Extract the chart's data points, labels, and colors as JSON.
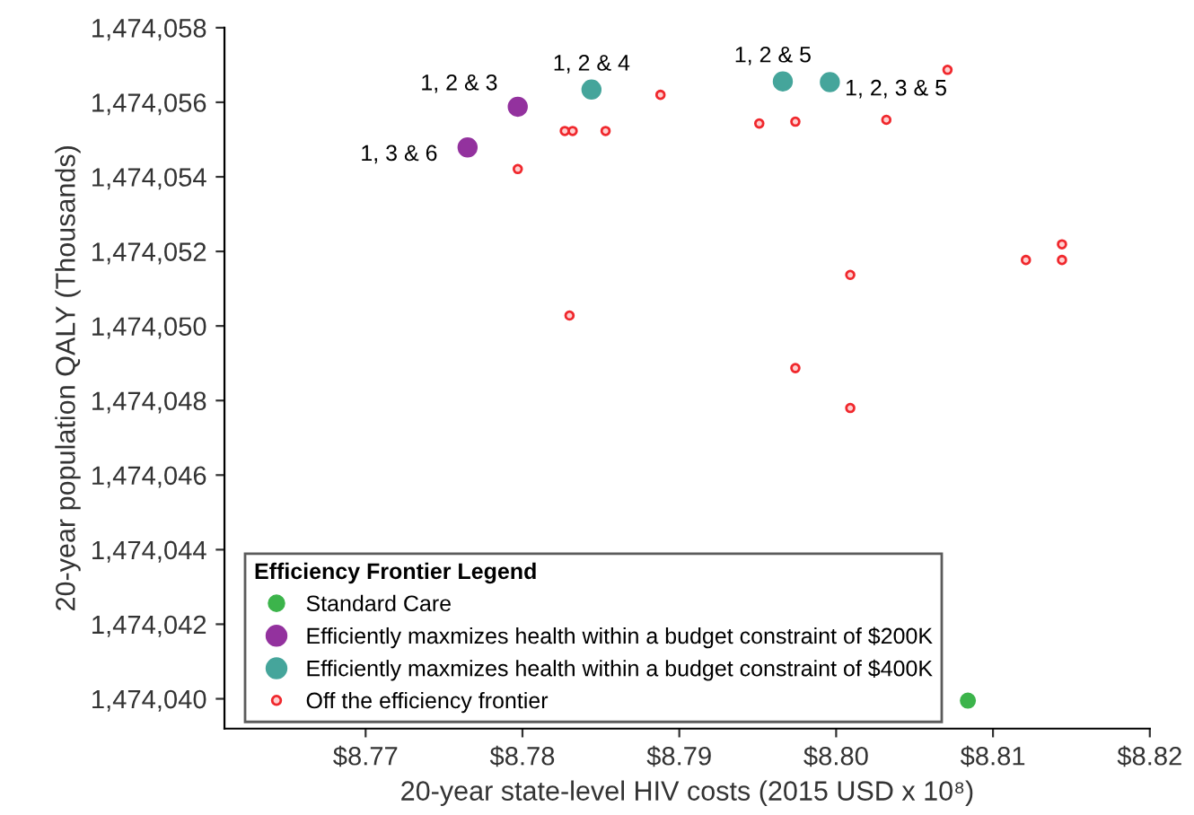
{
  "chart_data": {
    "type": "scatter",
    "xlabel": "20-year state-level HIV costs (2015 USD x 10⁸)",
    "ylabel": "20-year population QALY (Thousands)",
    "legend_title": "Efficiency Frontier Legend",
    "legend": "bottom left",
    "grid": false,
    "marker": "circle",
    "xlim": [
      8.761,
      8.82
    ],
    "xticks": [
      {
        "value": 8.77,
        "label": "$8.77"
      },
      {
        "value": 8.78,
        "label": "$8.78"
      },
      {
        "value": 8.79,
        "label": "$8.79"
      },
      {
        "value": 8.8,
        "label": "$8.80"
      },
      {
        "value": 8.81,
        "label": "$8.81"
      },
      {
        "value": 8.82,
        "label": "$8.82"
      }
    ],
    "ylim": [
      1474039.2,
      1474058
    ],
    "yticks": [
      {
        "value": 1474040,
        "label": "1,474,040"
      },
      {
        "value": 1474042,
        "label": "1,474,042"
      },
      {
        "value": 1474044,
        "label": "1,474,044"
      },
      {
        "value": 1474046,
        "label": "1,474,046"
      },
      {
        "value": 1474048,
        "label": "1,474,048"
      },
      {
        "value": 1474050,
        "label": "1,474,050"
      },
      {
        "value": 1474052,
        "label": "1,474,052"
      },
      {
        "value": 1474054,
        "label": "1,474,054"
      },
      {
        "value": 1474056,
        "label": "1,474,056"
      },
      {
        "value": 1474058,
        "label": "1,474,058"
      }
    ],
    "series": [
      {
        "name": "Standard Care",
        "color": "#3cb44b",
        "x": [
          8.8084
        ],
        "values": [
          1474039.95
        ]
      },
      {
        "name": "Efficiently maxmizes health within a budget constraint of $200K",
        "color": "#93329e",
        "x": [
          8.7797,
          8.7765
        ],
        "values": [
          1474055.88,
          1474054.79
        ]
      },
      {
        "name": "Efficiently maxmizes health within a budget constraint of $400K",
        "color": "#45a59b",
        "x": [
          8.7844,
          8.7966,
          8.7996
        ],
        "values": [
          1474056.34,
          1474056.56,
          1474056.54
        ]
      },
      {
        "name": "Off the efficiency frontier",
        "color": "#f0282d",
        "x": [
          8.7888,
          8.7827,
          8.7832,
          8.7853,
          8.7797,
          8.7951,
          8.7974,
          8.8032,
          8.8071,
          8.8144,
          8.8121,
          8.8144,
          8.8009,
          8.783,
          8.7974,
          8.8009
        ],
        "values": [
          1474056.2,
          1474055.23,
          1474055.23,
          1474055.23,
          1474054.21,
          1474055.43,
          1474055.48,
          1474055.53,
          1474056.87,
          1474052.19,
          1474051.77,
          1474051.77,
          1474051.37,
          1474050.28,
          1474048.87,
          1474047.8
        ]
      }
    ],
    "annotations": [
      {
        "text": "1, 2 & 3",
        "x": 8.7797,
        "y": 1474055.88
      },
      {
        "text": "1, 3 & 6",
        "x": 8.7765,
        "y": 1474054.79
      },
      {
        "text": "1, 2 & 4",
        "x": 8.7844,
        "y": 1474056.34
      },
      {
        "text": "1, 2 & 5",
        "x": 8.7966,
        "y": 1474056.56
      },
      {
        "text": "1, 2, 3 & 5",
        "x": 8.7996,
        "y": 1474056.54
      }
    ]
  }
}
